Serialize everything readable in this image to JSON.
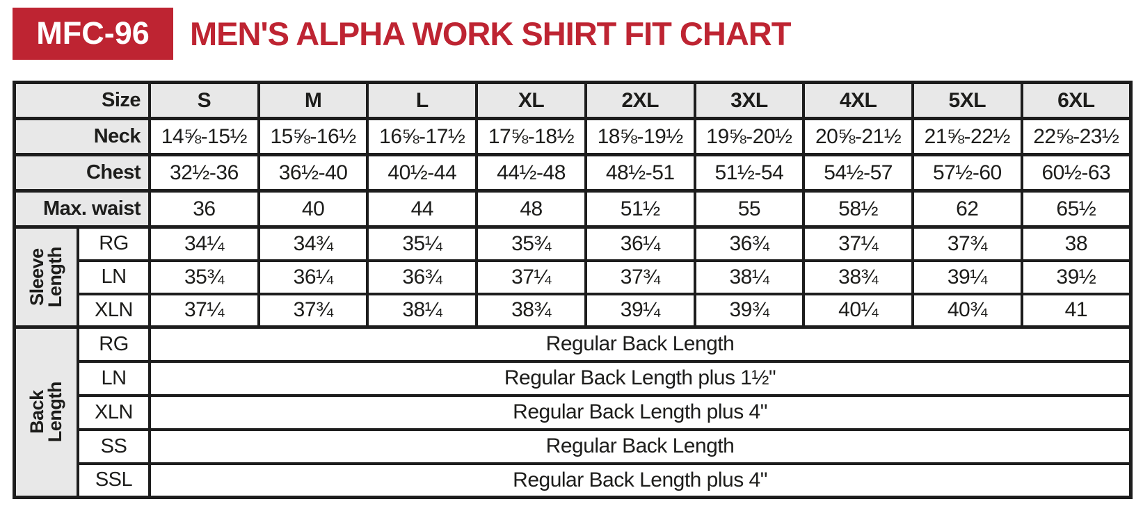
{
  "colors": {
    "accent_red": "#be2432",
    "header_gray": "#e8e8e8",
    "border_black": "#1d1d1d",
    "text_black": "#1d1d1b"
  },
  "header": {
    "badge": "MFC-96",
    "title": "MEN'S ALPHA WORK SHIRT FIT CHART"
  },
  "chart_data": {
    "type": "table",
    "product_code": "MFC-96",
    "title": "MEN'S ALPHA WORK SHIRT FIT CHART",
    "size_header": {
      "label": "Size",
      "columns": [
        "S",
        "M",
        "L",
        "XL",
        "2XL",
        "3XL",
        "4XL",
        "5XL",
        "6XL"
      ]
    },
    "measurement_rows": [
      {
        "label": "Neck",
        "values": [
          "14⅝-15½",
          "15⅝-16½",
          "16⅝-17½",
          "17⅝-18½",
          "18⅝-19½",
          "19⅝-20½",
          "20⅝-21½",
          "21⅝-22½",
          "22⅝-23½"
        ]
      },
      {
        "label": "Chest",
        "values": [
          "32½-36",
          "36½-40",
          "40½-44",
          "44½-48",
          "48½-51",
          "51½-54",
          "54½-57",
          "57½-60",
          "60½-63"
        ]
      },
      {
        "label": "Max. waist",
        "values": [
          "36",
          "40",
          "44",
          "48",
          "51½",
          "55",
          "58½",
          "62",
          "65½"
        ]
      }
    ],
    "sleeve_length": {
      "label": "Sleeve\nLength",
      "rows": [
        {
          "label": "RG",
          "values": [
            "34¼",
            "34¾",
            "35¼",
            "35¾",
            "36¼",
            "36¾",
            "37¼",
            "37¾",
            "38"
          ]
        },
        {
          "label": "LN",
          "values": [
            "35¾",
            "36¼",
            "36¾",
            "37¼",
            "37¾",
            "38¼",
            "38¾",
            "39¼",
            "39½"
          ]
        },
        {
          "label": "XLN",
          "values": [
            "37¼",
            "37¾",
            "38¼",
            "38¾",
            "39¼",
            "39¾",
            "40¼",
            "40¾",
            "41"
          ]
        }
      ]
    },
    "back_length": {
      "label": "Back Length",
      "rows": [
        {
          "label": "RG",
          "text": "Regular Back Length"
        },
        {
          "label": "LN",
          "text": "Regular Back Length plus 1½\""
        },
        {
          "label": "XLN",
          "text": "Regular Back Length plus 4\""
        },
        {
          "label": "SS",
          "text": "Regular Back Length"
        },
        {
          "label": "SSL",
          "text": "Regular Back Length plus 4\""
        }
      ]
    }
  }
}
